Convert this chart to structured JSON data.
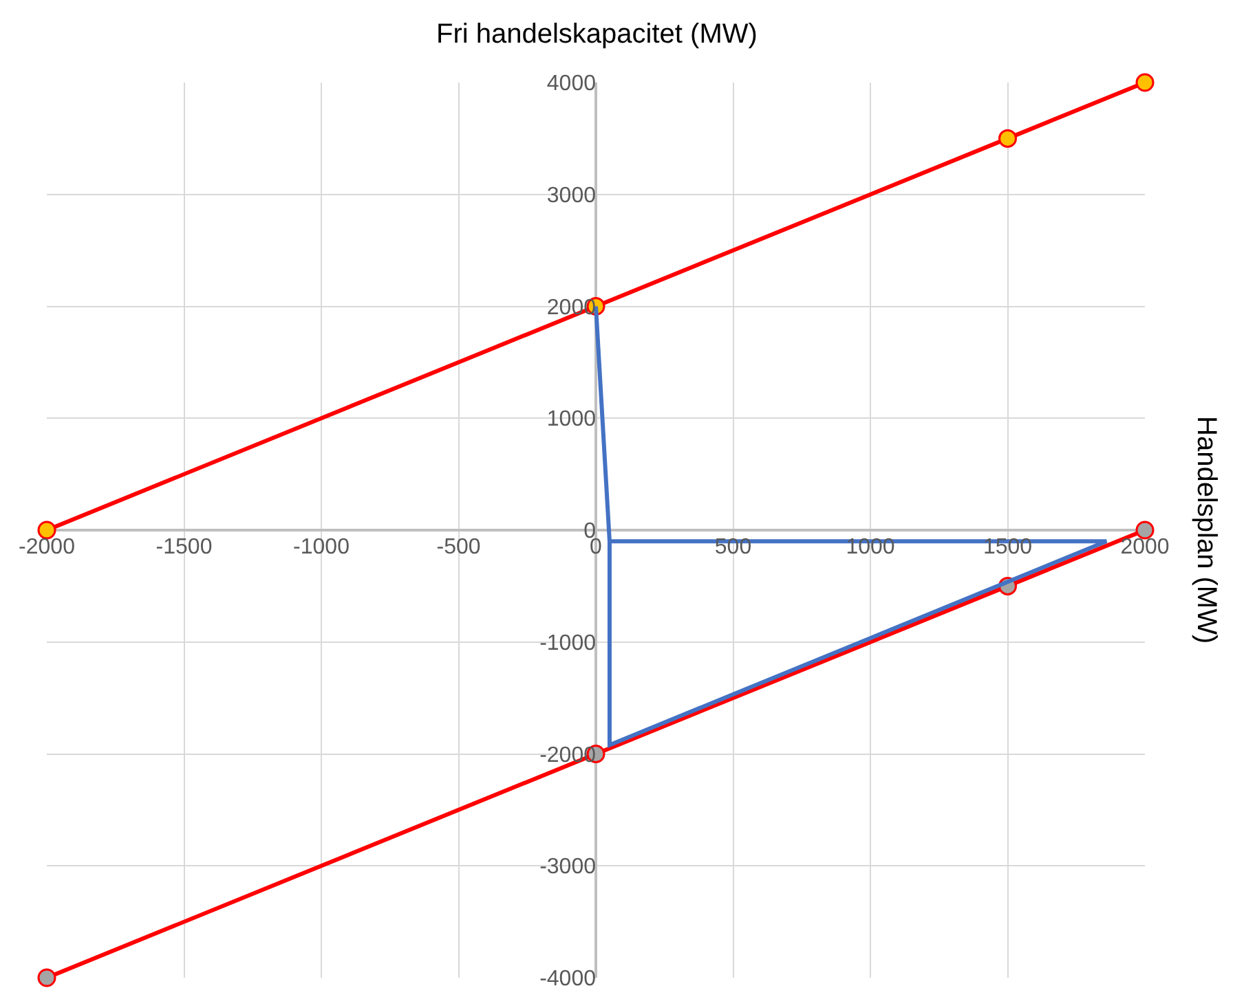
{
  "chart_data": {
    "type": "line",
    "xlabel": "Fri handelskapacitet (MW)",
    "ylabel": "Handelsplan (MW)",
    "xlim": [
      -2000,
      2000
    ],
    "ylim": [
      -4000,
      4000
    ],
    "xticks": [
      -2000,
      -1500,
      -1000,
      -500,
      0,
      500,
      1000,
      1500,
      2000
    ],
    "yticks": [
      -4000,
      -3000,
      -2000,
      -1000,
      0,
      1000,
      2000,
      3000,
      4000
    ],
    "grid": true,
    "legend": false,
    "series": [
      {
        "color": "#ff0000",
        "x": [
          -2000,
          0,
          1500,
          2000
        ],
        "values": [
          0,
          2000,
          3500,
          4000
        ],
        "marker": "circle",
        "colors": [
          "#ffc000",
          "#ffc000",
          "#ffc000",
          "#ffc000"
        ]
      },
      {
        "color": "#ff0000",
        "x": [
          -2000,
          0,
          1500,
          2000
        ],
        "values": [
          -4000,
          -2000,
          -500,
          0
        ],
        "marker": "circle",
        "colors": [
          "#a5a5a5",
          "#a5a5a5",
          "#a5a5a5",
          "#a5a5a5"
        ]
      },
      {
        "color": "#4472c4",
        "x": [
          0,
          50,
          1860,
          50,
          50
        ],
        "values": [
          2000,
          -100,
          -100,
          -1920,
          -100
        ],
        "marker": "none"
      }
    ]
  }
}
